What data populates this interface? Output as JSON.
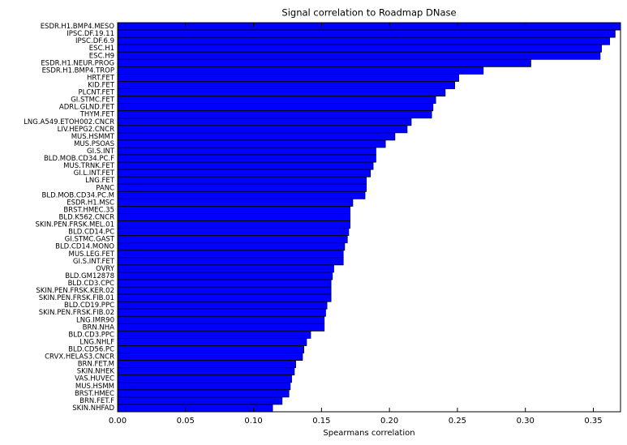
{
  "chart_data": {
    "type": "barh",
    "title": "Signal correlation to Roadmap DNase",
    "x_label": "Spearmans correlation",
    "color": "#0000ff",
    "categories": [
      "ESDR.H1.BMP4.MESO",
      "IPSC.DF.19.11",
      "IPSC.DF.6.9",
      "ESC.H1",
      "ESC.H9",
      "ESDR.H1.NEUR.PROG",
      "ESDR.H1.BMP4.TROP",
      "HRT.FET",
      "KID.FET",
      "PLCNT.FET",
      "GI.STMC.FET",
      "ADRL.GLND.FET",
      "THYM.FET",
      "LNG.A549.ETOH002.CNCR",
      "LIV.HEPG2.CNCR",
      "MUS.HSMMT",
      "MUS.PSOAS",
      "GI.S.INT",
      "BLD.MOB.CD34.PC.F",
      "MUS.TRNK.FET",
      "GI.L.INT.FET",
      "LNG.FET",
      "PANC",
      "BLD.MOB.CD34.PC.M",
      "ESDR.H1.MSC",
      "BRST.HMEC.35",
      "BLD.K562.CNCR",
      "SKIN.PEN.FRSK.MEL.01",
      "BLD.CD14.PC",
      "GI.STMC.GAST",
      "BLD.CD14.MONO",
      "MUS.LEG.FET",
      "GI.S.INT.FET",
      "OVRY",
      "BLD.GM12878",
      "BLD.CD3.CPC",
      "SKIN.PEN.FRSK.KER.02",
      "SKIN.PEN.FRSK.FIB.01",
      "BLD.CD19.PPC",
      "SKIN.PEN.FRSK.FIB.02",
      "LNG.IMR90",
      "BRN.NHA",
      "BLD.CD3.PPC",
      "LNG.NHLF",
      "BLD.CD56.PC",
      "CRVX.HELAS3.CNCR",
      "BRN.FET.M",
      "SKIN.NHEK",
      "VAS.HUVEC",
      "MUS.HSMM",
      "BRST.HMEC",
      "BRN.FET.F",
      "SKIN.NHFAD"
    ],
    "values": [
      0.37,
      0.366,
      0.362,
      0.356,
      0.355,
      0.304,
      0.269,
      0.251,
      0.248,
      0.241,
      0.234,
      0.232,
      0.231,
      0.216,
      0.213,
      0.204,
      0.197,
      0.19,
      0.19,
      0.188,
      0.186,
      0.183,
      0.183,
      0.182,
      0.173,
      0.171,
      0.171,
      0.171,
      0.17,
      0.169,
      0.167,
      0.166,
      0.166,
      0.159,
      0.158,
      0.157,
      0.157,
      0.157,
      0.154,
      0.153,
      0.152,
      0.152,
      0.142,
      0.139,
      0.137,
      0.136,
      0.131,
      0.13,
      0.128,
      0.127,
      0.126,
      0.121,
      0.114
    ],
    "xlim": [
      0,
      0.37
    ],
    "xticks": [
      {
        "value": 0,
        "label": "0.00"
      },
      0.05,
      {
        "value": 0.1,
        "label": "0.10"
      },
      0.15,
      {
        "value": 0.2,
        "label": "0.20"
      },
      0.25,
      {
        "value": 0.3,
        "label": "0.30"
      },
      0.35
    ]
  }
}
